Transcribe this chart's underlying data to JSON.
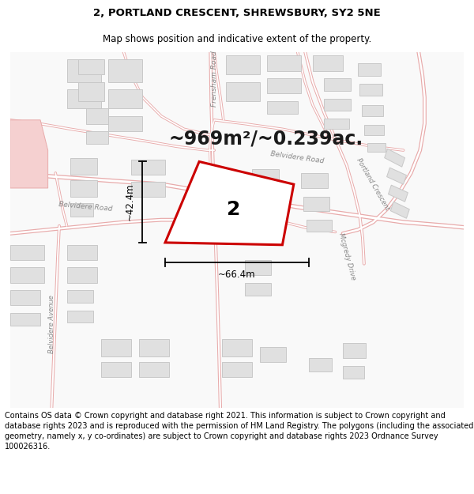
{
  "title_line1": "2, PORTLAND CRESCENT, SHREWSBURY, SY2 5NE",
  "title_line2": "Map shows position and indicative extent of the property.",
  "area_text": "~969m²/~0.239ac.",
  "property_number": "2",
  "dim_width": "~66.4m",
  "dim_height": "~42.4m",
  "footer_text": "Contains OS data © Crown copyright and database right 2021. This information is subject to Crown copyright and database rights 2023 and is reproduced with the permission of HM Land Registry. The polygons (including the associated geometry, namely x, y co-ordinates) are subject to Crown copyright and database rights 2023 Ordnance Survey 100026316.",
  "map_bg": "#f9f9f9",
  "road_line_color": "#e8aaaa",
  "road_fill_color": "#ffffff",
  "building_fill": "#e0e0e0",
  "building_edge": "#c8c8c8",
  "property_fill": "#ffffff",
  "property_stroke": "#cc0000",
  "title_fontsize": 9.5,
  "subtitle_fontsize": 8.5,
  "area_fontsize": 17,
  "dim_fontsize": 8.5,
  "road_label_fontsize": 6.5,
  "footer_fontsize": 7.0,
  "road_outer_lw": 2.5,
  "road_inner_lw": 1.2,
  "property_lw": 2.2
}
